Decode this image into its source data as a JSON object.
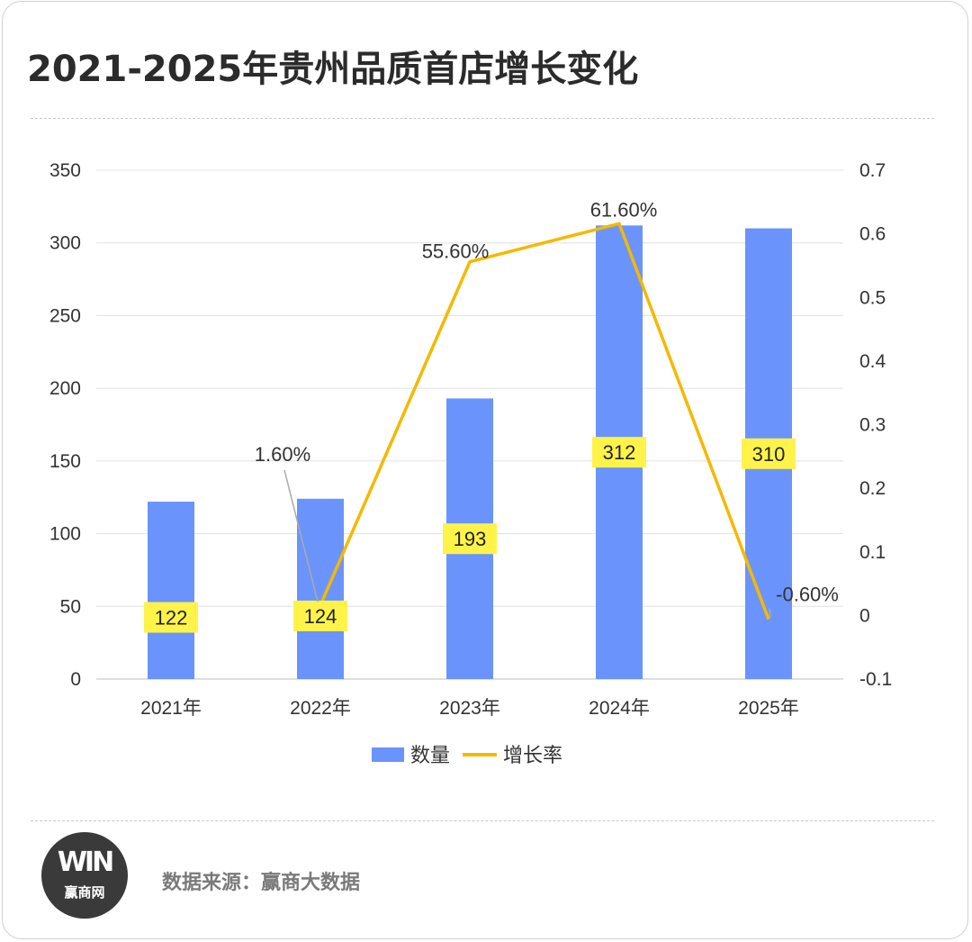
{
  "header": {
    "title": "2021-2025年贵州品质首店增长变化"
  },
  "chart_data": {
    "type": "bar",
    "categories": [
      "2021年",
      "2022年",
      "2023年",
      "2024年",
      "2025年"
    ],
    "series": [
      {
        "name": "数量",
        "kind": "bar",
        "axis": "left",
        "color": "#6a94fb",
        "values": [
          122,
          124,
          193,
          312,
          310
        ],
        "data_labels": [
          "122",
          "124",
          "193",
          "312",
          "310"
        ]
      },
      {
        "name": "增长率",
        "kind": "line",
        "axis": "right",
        "color": "#f5b800",
        "values": [
          null,
          0.016,
          0.556,
          0.616,
          -0.006
        ],
        "data_labels": [
          null,
          "1.60%",
          "55.60%",
          "61.60%",
          "-0.60%"
        ]
      }
    ],
    "y_left": {
      "min": 0,
      "max": 350,
      "ticks": [
        0,
        50,
        100,
        150,
        200,
        250,
        300,
        350
      ],
      "tick_labels": [
        "0",
        "50",
        "100",
        "150",
        "200",
        "250",
        "300",
        "350"
      ]
    },
    "y_right": {
      "min": -0.1,
      "max": 0.7,
      "ticks": [
        -0.1,
        0,
        0.1,
        0.2,
        0.3,
        0.4,
        0.5,
        0.6,
        0.7
      ],
      "tick_labels": [
        "-0.1",
        "0",
        "0.1",
        "0.2",
        "0.3",
        "0.4",
        "0.5",
        "0.6",
        "0.7"
      ]
    },
    "grid": true,
    "legend": "bottom-center",
    "bar_label_bg": "#fff34a",
    "title": "2021-2025年贵州品质首店增长变化"
  },
  "footer": {
    "logo_mark": "WIN",
    "logo_text": "赢商网",
    "source": "数据来源：赢商大数据"
  }
}
